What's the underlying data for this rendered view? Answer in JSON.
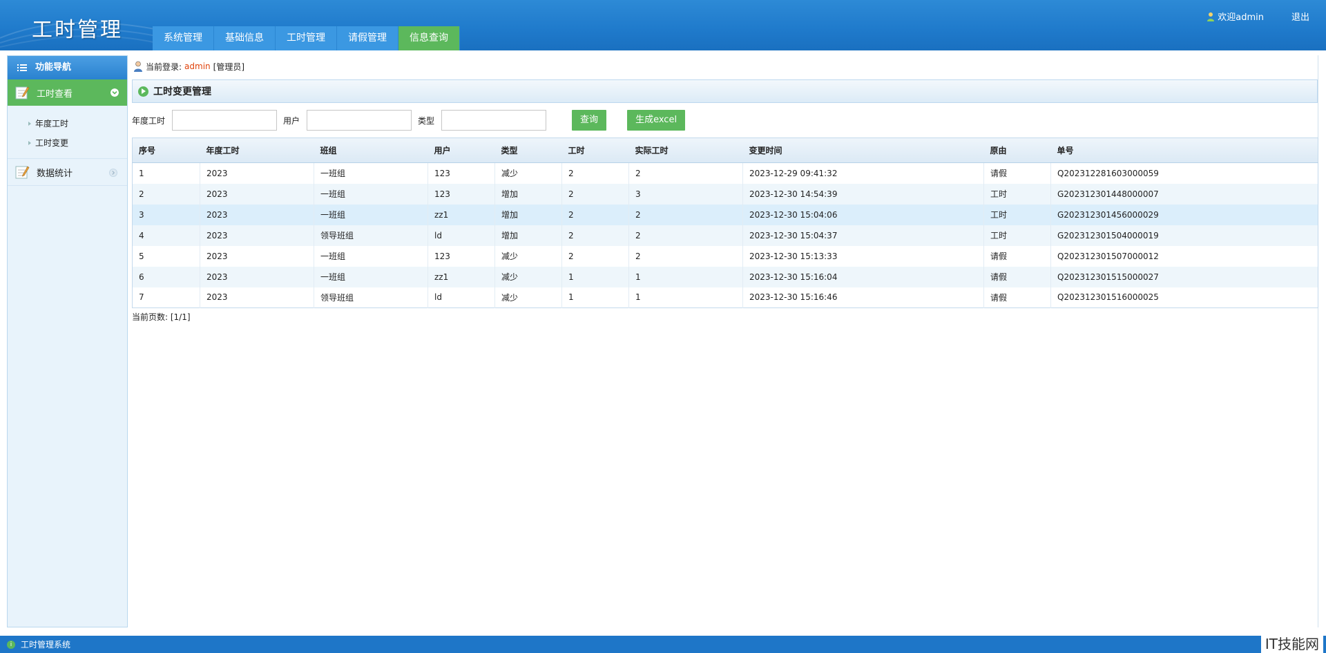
{
  "header": {
    "logo": "工时管理",
    "nav": [
      {
        "label": "系统管理",
        "active": false
      },
      {
        "label": "基础信息",
        "active": false
      },
      {
        "label": "工时管理",
        "active": false
      },
      {
        "label": "请假管理",
        "active": false
      },
      {
        "label": "信息查询",
        "active": true
      }
    ],
    "welcome": "欢迎admin",
    "logout": "退出"
  },
  "sidebar": {
    "title": "功能导航",
    "group1": "工时查看",
    "group1_items": [
      "年度工时",
      "工时变更"
    ],
    "group2": "数据统计"
  },
  "main": {
    "login_prefix": "当前登录:",
    "login_user": "admin",
    "login_role": "[管理员]",
    "page_title": "工时变更管理",
    "search": {
      "year_label": "年度工时",
      "user_label": "用户",
      "type_label": "类型",
      "year_value": "",
      "user_value": "",
      "type_value": "",
      "query_btn": "查询",
      "excel_btn": "生成excel"
    },
    "table": {
      "columns": [
        "序号",
        "年度工时",
        "班组",
        "用户",
        "类型",
        "工时",
        "实际工时",
        "变更时间",
        "原由",
        "单号"
      ],
      "rows": [
        [
          "1",
          "2023",
          "一班组",
          "123",
          "减少",
          "2",
          "2",
          "2023-12-29 09:41:32",
          "请假",
          "Q202312281603000059"
        ],
        [
          "2",
          "2023",
          "一班组",
          "123",
          "增加",
          "2",
          "3",
          "2023-12-30 14:54:39",
          "工时",
          "G202312301448000007"
        ],
        [
          "3",
          "2023",
          "一班组",
          "zz1",
          "增加",
          "2",
          "2",
          "2023-12-30 15:04:06",
          "工时",
          "G202312301456000029"
        ],
        [
          "4",
          "2023",
          "领导班组",
          "ld",
          "增加",
          "2",
          "2",
          "2023-12-30 15:04:37",
          "工时",
          "G202312301504000019"
        ],
        [
          "5",
          "2023",
          "一班组",
          "123",
          "减少",
          "2",
          "2",
          "2023-12-30 15:13:33",
          "请假",
          "Q202312301507000012"
        ],
        [
          "6",
          "2023",
          "一班组",
          "zz1",
          "减少",
          "1",
          "1",
          "2023-12-30 15:16:04",
          "请假",
          "Q202312301515000027"
        ],
        [
          "7",
          "2023",
          "领导班组",
          "ld",
          "减少",
          "1",
          "1",
          "2023-12-30 15:16:46",
          "请假",
          "Q202312301516000025"
        ]
      ]
    },
    "pager": "当前页数: [1/1]"
  },
  "footer": {
    "system_name": "工时管理系统",
    "watermark": "IT技能网"
  },
  "colors": {
    "header_blue": "#1f7acb",
    "nav_tab": "#3b98e2",
    "active_green": "#5cb85c",
    "admin_red": "#e0420a"
  }
}
